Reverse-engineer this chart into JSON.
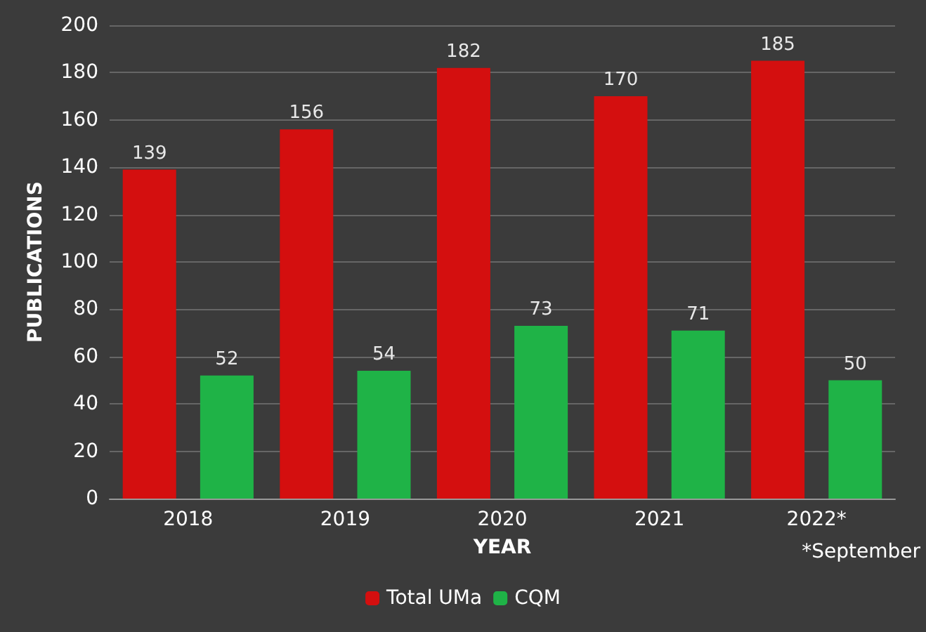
{
  "chart_data": {
    "type": "bar",
    "xlabel": "YEAR",
    "ylabel": "PUBLICATIONS",
    "categories": [
      "2018",
      "2019",
      "2020",
      "2021",
      "2022*"
    ],
    "series": [
      {
        "name": "Total UMa",
        "color": "#d40f0f",
        "values": [
          139,
          156,
          182,
          170,
          185
        ]
      },
      {
        "name": "CQM",
        "color": "#1fb347",
        "values": [
          52,
          54,
          73,
          71,
          50
        ]
      }
    ],
    "ylim": [
      0,
      200
    ],
    "yticks": [
      0,
      20,
      40,
      60,
      80,
      100,
      120,
      140,
      160,
      180,
      200
    ],
    "grid": "y",
    "legend": "bottom",
    "data_labels": true,
    "annotations": [
      "*September"
    ]
  }
}
